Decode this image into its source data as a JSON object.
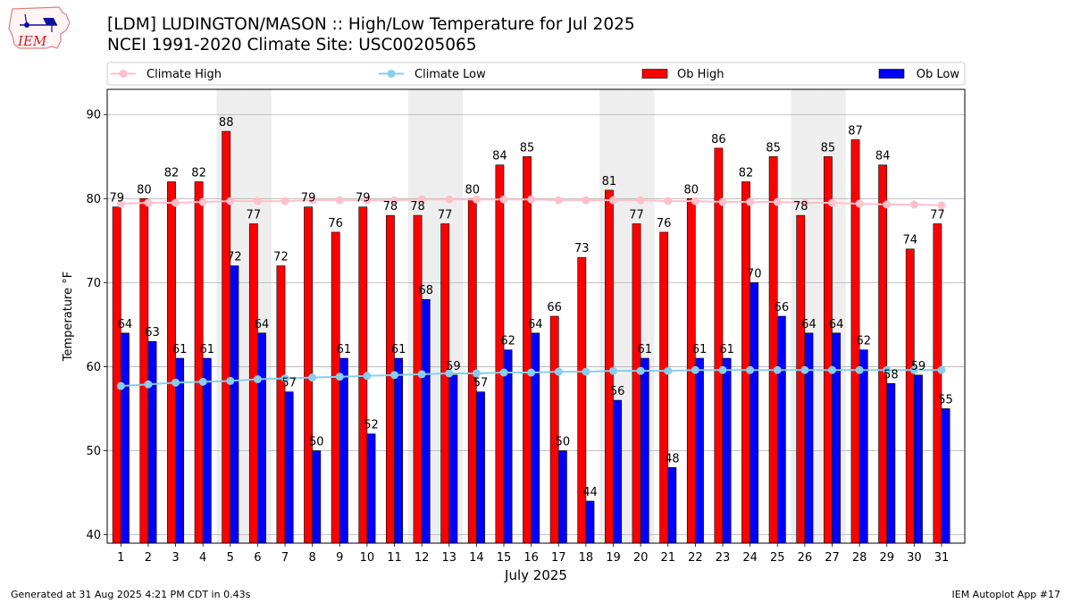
{
  "header": {
    "title": "[LDM] LUDINGTON/MASON :: High/Low Temperature for Jul 2025",
    "subtitle": "NCEI 1991-2020 Climate Site: USC00205065",
    "logo_text": "IEM"
  },
  "footer": {
    "generated": "Generated at 31 Aug 2025 4:21 PM CDT in 0.43s",
    "app": "IEM Autoplot App #17"
  },
  "colors": {
    "ob_high": "#ff0000",
    "ob_low": "#0000ff",
    "climate_high": "#ffc0cb",
    "climate_low": "#87ceeb",
    "weekend_shade": "#eeeeee",
    "grid": "#b0b0b0"
  },
  "chart_data": {
    "type": "bar",
    "xlabel": "July 2025",
    "ylabel": "Temperature °F",
    "ylim": [
      39,
      93
    ],
    "yticks": [
      40,
      50,
      60,
      70,
      80,
      90
    ],
    "grid": "horizontal",
    "legend_position": "top",
    "categories": [
      "1",
      "2",
      "3",
      "4",
      "5",
      "6",
      "7",
      "8",
      "9",
      "10",
      "11",
      "12",
      "13",
      "14",
      "15",
      "16",
      "17",
      "18",
      "19",
      "20",
      "21",
      "22",
      "23",
      "24",
      "25",
      "26",
      "27",
      "28",
      "29",
      "30",
      "31"
    ],
    "shaded_weekend_days": [
      5,
      6,
      12,
      13,
      19,
      20,
      26,
      27
    ],
    "series": [
      {
        "name": "Climate High",
        "kind": "line",
        "values": [
          79.4,
          79.5,
          79.5,
          79.6,
          79.7,
          79.7,
          79.7,
          79.8,
          79.8,
          79.8,
          79.8,
          79.9,
          79.9,
          79.9,
          79.9,
          79.9,
          79.8,
          79.8,
          79.8,
          79.8,
          79.7,
          79.7,
          79.6,
          79.6,
          79.6,
          79.5,
          79.5,
          79.4,
          79.3,
          79.3,
          79.2
        ]
      },
      {
        "name": "Climate Low",
        "kind": "line",
        "values": [
          57.7,
          57.9,
          58.1,
          58.2,
          58.3,
          58.5,
          58.6,
          58.7,
          58.8,
          58.9,
          59.0,
          59.1,
          59.2,
          59.2,
          59.3,
          59.3,
          59.4,
          59.4,
          59.5,
          59.5,
          59.5,
          59.6,
          59.6,
          59.6,
          59.6,
          59.6,
          59.6,
          59.6,
          59.6,
          59.6,
          59.6
        ]
      },
      {
        "name": "Ob High",
        "kind": "bar",
        "values": [
          79,
          80,
          82,
          82,
          88,
          77,
          72,
          79,
          76,
          79,
          78,
          78,
          77,
          80,
          84,
          85,
          66,
          73,
          81,
          77,
          76,
          80,
          86,
          82,
          85,
          78,
          85,
          87,
          84,
          74,
          77
        ]
      },
      {
        "name": "Ob Low",
        "kind": "bar",
        "values": [
          64,
          63,
          61,
          61,
          72,
          64,
          57,
          50,
          61,
          52,
          61,
          68,
          59,
          57,
          62,
          64,
          50,
          44,
          56,
          61,
          48,
          61,
          61,
          70,
          66,
          64,
          64,
          62,
          58,
          59,
          55
        ]
      }
    ]
  }
}
